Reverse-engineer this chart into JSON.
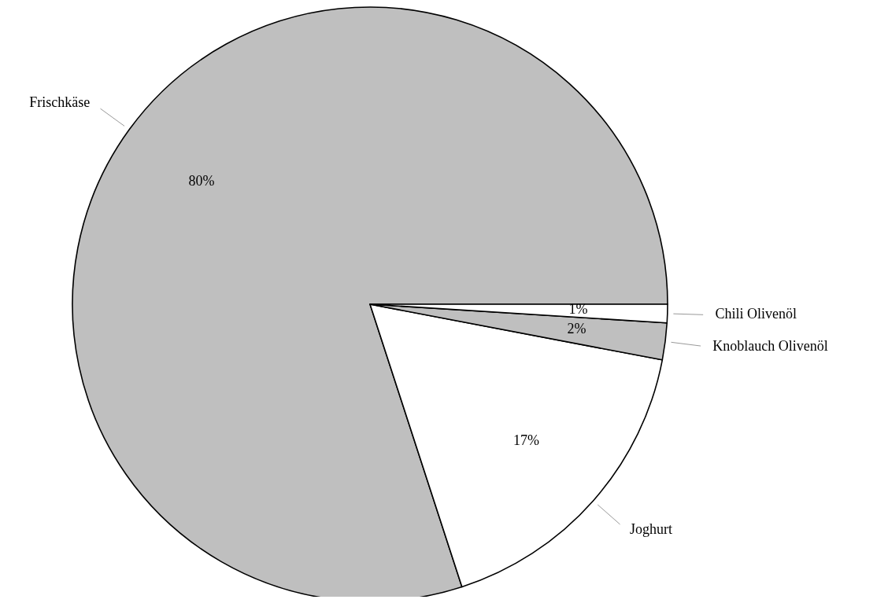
{
  "chart_data": {
    "type": "pie",
    "categories": [
      "Frischkäse",
      "Joghurt",
      "Knoblauch Olivenöl",
      "Chili Olivenöl"
    ],
    "values": [
      80,
      17,
      2,
      1
    ],
    "colors": [
      "#bfbfbf",
      "#ffffff",
      "#bfbfbf",
      "#ffffff"
    ],
    "value_labels": [
      "80%",
      "17%",
      "2%",
      "1%"
    ]
  }
}
